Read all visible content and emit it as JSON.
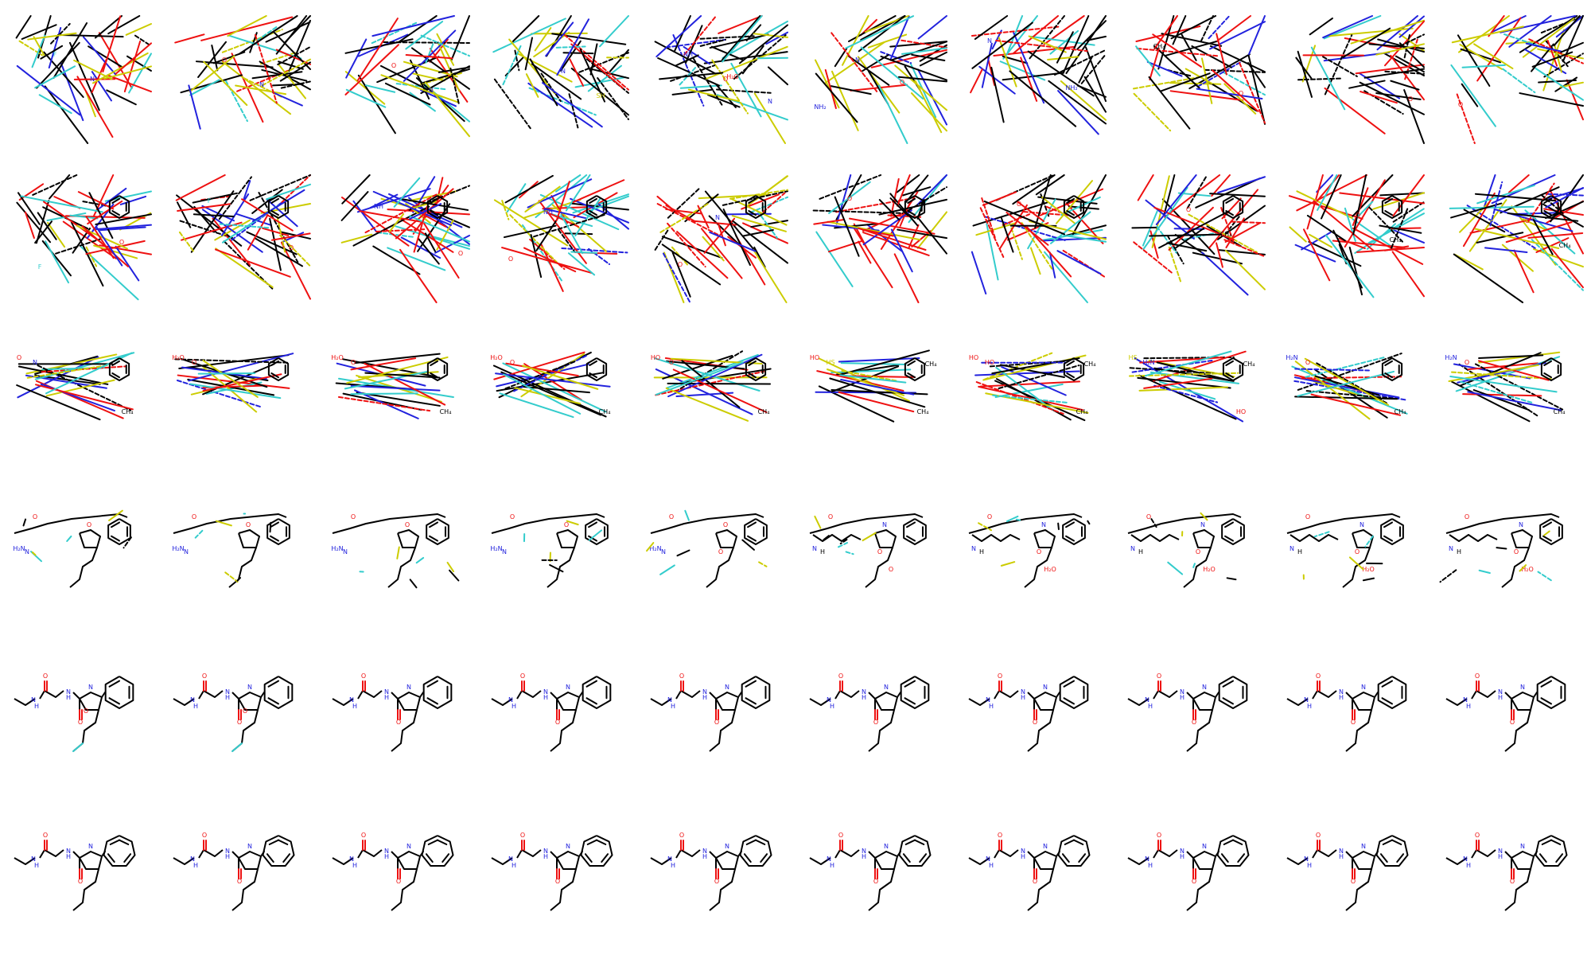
{
  "colors": {
    "carbon": "#000000",
    "nitrogen": "#2222dd",
    "oxygen": "#ee1111",
    "sulfur": "#cccc00",
    "fluorine": "#33cccc",
    "background": "#ffffff"
  },
  "grid": {
    "rows": 6,
    "cols": 10,
    "frames": 60
  },
  "atom_labels": {
    "water": "H₂O",
    "nitrogen": "N",
    "oxygen": "O",
    "fluorine": "F",
    "amine_nh": "NH",
    "amine_nh2": "NH₂",
    "amide_h2n": "H₂N",
    "secondary_amine": "N",
    "secondary_amine_h": "H",
    "methane": "CH₄",
    "hydroxyl": "HO",
    "thiol": "HS",
    "sulfur_hydride": "SH"
  },
  "frames": [
    {
      "stage": "chaotic",
      "labels": [
        "F",
        "N"
      ]
    },
    {
      "stage": "chaotic",
      "labels": [
        "O",
        "N"
      ]
    },
    {
      "stage": "chaotic",
      "labels": [
        "O",
        "N"
      ]
    },
    {
      "stage": "chaotic",
      "labels": [
        "N",
        "SH"
      ]
    },
    {
      "stage": "chaotic",
      "labels": [
        "H₂O",
        "N",
        "NH",
        "O"
      ]
    },
    {
      "stage": "chaotic",
      "labels": [
        "O",
        "NH₂",
        "N"
      ]
    },
    {
      "stage": "chaotic",
      "labels": [
        "NH₂",
        "N"
      ]
    },
    {
      "stage": "chaotic",
      "labels": [
        "O",
        "CH₄"
      ]
    },
    {
      "stage": "chaotic",
      "labels": [
        "O"
      ]
    },
    {
      "stage": "chaotic",
      "labels": [
        "O"
      ]
    },
    {
      "stage": "dense",
      "labels": [
        "O",
        "F"
      ]
    },
    {
      "stage": "dense",
      "labels": [
        "O",
        "F"
      ]
    },
    {
      "stage": "dense",
      "labels": [
        "O",
        "NH"
      ]
    },
    {
      "stage": "dense",
      "labels": [
        "O",
        "NH"
      ]
    },
    {
      "stage": "dense",
      "labels": [
        "O",
        "N"
      ]
    },
    {
      "stage": "dense",
      "labels": [
        "O"
      ]
    },
    {
      "stage": "dense",
      "labels": [
        "O"
      ]
    },
    {
      "stage": "dense",
      "labels": [
        "O",
        "CH₄"
      ]
    },
    {
      "stage": "dense",
      "labels": [
        "O",
        "CH₄"
      ]
    },
    {
      "stage": "dense",
      "labels": [
        "O",
        "CH₄"
      ]
    },
    {
      "stage": "forming",
      "labels": [
        "O",
        "N",
        "CH₄"
      ]
    },
    {
      "stage": "forming",
      "labels": [
        "H₂O",
        "O"
      ]
    },
    {
      "stage": "forming",
      "labels": [
        "H₂O",
        "O",
        "CH₄"
      ]
    },
    {
      "stage": "forming",
      "labels": [
        "H₂O",
        "O",
        "CH₄"
      ]
    },
    {
      "stage": "forming",
      "labels": [
        "HO",
        "O",
        "CH₄"
      ]
    },
    {
      "stage": "forming",
      "labels": [
        "HO",
        "HS",
        "CH₄",
        "CH₄"
      ]
    },
    {
      "stage": "forming",
      "labels": [
        "HO",
        "HO",
        "CH₄",
        "CH₄"
      ]
    },
    {
      "stage": "forming",
      "labels": [
        "HS",
        "H₂N",
        "HO",
        "CH₄"
      ]
    },
    {
      "stage": "forming",
      "labels": [
        "H₂N",
        "O",
        "CH₄"
      ]
    },
    {
      "stage": "forming",
      "labels": [
        "H₂N",
        "O",
        "CH₄"
      ]
    },
    {
      "stage": "near",
      "labels": [
        "O",
        "H₂N",
        "N",
        "O"
      ]
    },
    {
      "stage": "near",
      "labels": [
        "O",
        "H₂N",
        "N",
        "O"
      ]
    },
    {
      "stage": "near",
      "labels": [
        "O",
        "H₂N",
        "N",
        "O"
      ]
    },
    {
      "stage": "near",
      "labels": [
        "O",
        "H₂N",
        "N",
        "O"
      ]
    },
    {
      "stage": "near",
      "labels": [
        "O",
        "H₂N",
        "N",
        "O",
        "O"
      ]
    },
    {
      "stage": "near2",
      "labels": [
        "O",
        "N",
        "H",
        "N",
        "O",
        "O"
      ]
    },
    {
      "stage": "near2",
      "labels": [
        "O",
        "N",
        "H",
        "N",
        "O",
        "H₂O"
      ]
    },
    {
      "stage": "near2",
      "labels": [
        "O",
        "N",
        "H",
        "N",
        "O",
        "H₂O"
      ]
    },
    {
      "stage": "near2",
      "labels": [
        "O",
        "N",
        "H",
        "N",
        "O",
        "H₂O"
      ]
    },
    {
      "stage": "near2",
      "labels": [
        "O",
        "N",
        "H",
        "N",
        "O",
        "H₂O"
      ]
    },
    {
      "stage": "final_f",
      "labels": [
        "O",
        "N",
        "H",
        "N",
        "O",
        "O"
      ]
    },
    {
      "stage": "final_f",
      "labels": [
        "O",
        "N",
        "H",
        "N",
        "O",
        "O"
      ]
    },
    {
      "stage": "final",
      "labels": [
        "O",
        "N",
        "H",
        "N",
        "O",
        "O"
      ]
    },
    {
      "stage": "final",
      "labels": [
        "O",
        "N",
        "H",
        "N",
        "O",
        "O"
      ]
    },
    {
      "stage": "final",
      "labels": [
        "O",
        "N",
        "H",
        "N",
        "O",
        "O"
      ]
    },
    {
      "stage": "final",
      "labels": [
        "O",
        "N",
        "H",
        "N",
        "O",
        "O"
      ]
    },
    {
      "stage": "final",
      "labels": [
        "O",
        "N",
        "H",
        "N",
        "O",
        "O"
      ]
    },
    {
      "stage": "final",
      "labels": [
        "O",
        "N",
        "H",
        "N",
        "O",
        "O"
      ]
    },
    {
      "stage": "final",
      "labels": [
        "O",
        "N",
        "H",
        "N",
        "O",
        "O"
      ]
    },
    {
      "stage": "final",
      "labels": [
        "O",
        "N",
        "H",
        "N",
        "O",
        "O"
      ]
    },
    {
      "stage": "final7",
      "labels": [
        "O",
        "N",
        "H",
        "N",
        "O"
      ]
    },
    {
      "stage": "final7",
      "labels": [
        "O",
        "N",
        "H",
        "N",
        "O"
      ]
    },
    {
      "stage": "final7",
      "labels": [
        "O",
        "N",
        "H",
        "N",
        "O"
      ]
    },
    {
      "stage": "final7",
      "labels": [
        "O",
        "N",
        "H",
        "N",
        "O"
      ]
    },
    {
      "stage": "final7",
      "labels": [
        "O",
        "N",
        "H",
        "N",
        "O"
      ]
    },
    {
      "stage": "final7",
      "labels": [
        "O",
        "N",
        "H",
        "N",
        "O"
      ]
    },
    {
      "stage": "final7",
      "labels": [
        "O",
        "N",
        "H",
        "N",
        "O"
      ]
    },
    {
      "stage": "final7",
      "labels": [
        "O",
        "N",
        "H",
        "N",
        "O"
      ]
    },
    {
      "stage": "final7",
      "labels": [
        "O",
        "N",
        "H",
        "N",
        "O"
      ]
    },
    {
      "stage": "final7",
      "labels": [
        "O",
        "N",
        "H",
        "N",
        "O"
      ]
    }
  ]
}
